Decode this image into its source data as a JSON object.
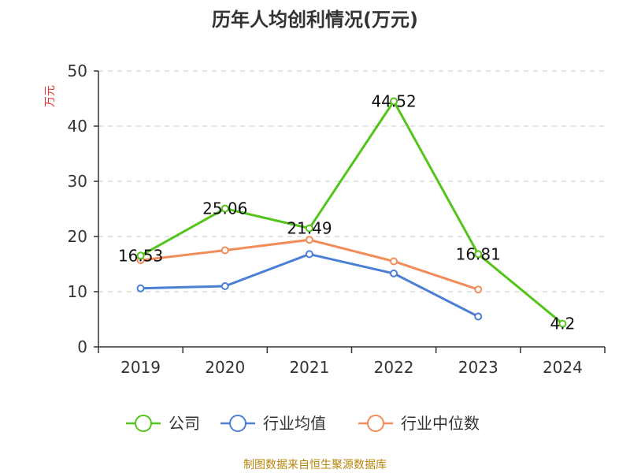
{
  "chart_data": {
    "type": "line",
    "title": "历年人均创利情况(万元)",
    "ylabel": "万元",
    "xlabel": "",
    "categories": [
      "2019",
      "2020",
      "2021",
      "2022",
      "2023",
      "2024"
    ],
    "ylim": [
      0,
      50
    ],
    "yticks": [
      0,
      10,
      20,
      30,
      40,
      50
    ],
    "grid": true,
    "legend_position": "bottom",
    "series": [
      {
        "name": "公司",
        "color": "#52c41a",
        "values": [
          16.53,
          25.06,
          21.49,
          44.52,
          16.81,
          4.2
        ],
        "labels": [
          "16.53",
          "25.06",
          "21.49",
          "44.52",
          "16.81",
          "4.2"
        ]
      },
      {
        "name": "行业均值",
        "color": "#4a7fd4",
        "values": [
          10.6,
          11.0,
          16.8,
          13.3,
          5.5,
          null
        ]
      },
      {
        "name": "行业中位数",
        "color": "#f28c58",
        "values": [
          15.7,
          17.5,
          19.4,
          15.5,
          10.4,
          null
        ]
      }
    ]
  },
  "source_text": "制图数据来自恒生聚源数据库"
}
